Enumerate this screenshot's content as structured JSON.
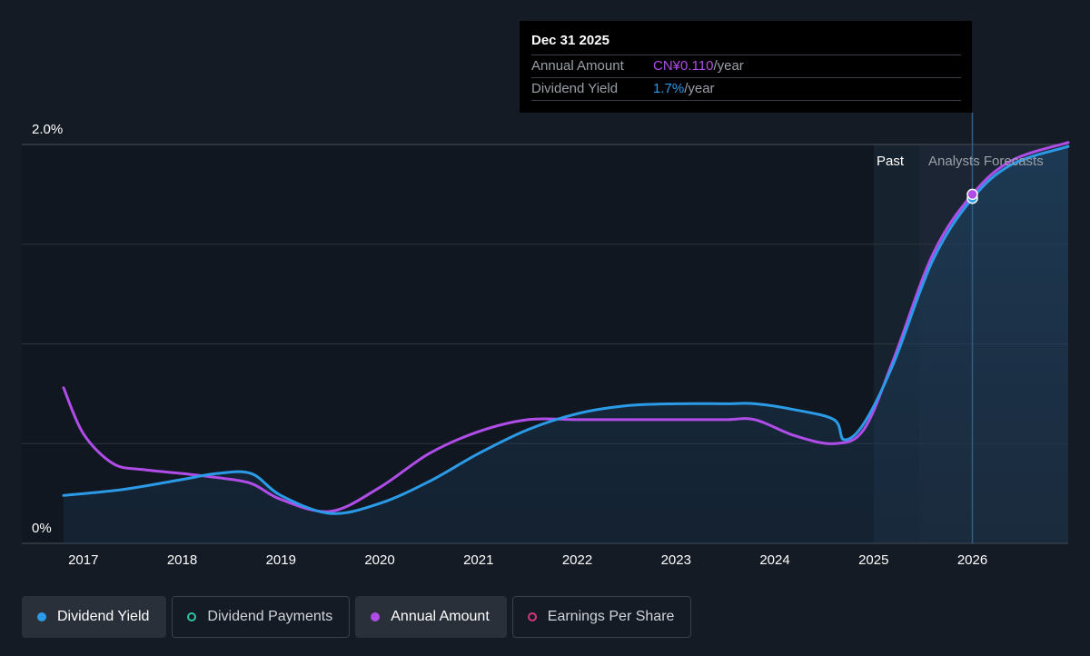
{
  "tooltip": {
    "date": "Dec 31 2025",
    "rows": [
      {
        "key": "Annual Amount",
        "value": "CN¥0.110",
        "unit": "/year"
      },
      {
        "key": "Dividend Yield",
        "value": "1.7%",
        "unit": "/year"
      }
    ]
  },
  "regions": {
    "past_label": "Past",
    "forecast_label": "Analysts Forecasts"
  },
  "colors": {
    "background": "#151b25",
    "dividend_yield": "#2b9be8",
    "annual_amount": "#b04de8",
    "dividend_payments": "#2ec4a6",
    "earnings_per_share": "#d2367e",
    "grid": "#2e3440"
  },
  "legend": [
    {
      "label": "Dividend Yield",
      "style": "filled",
      "color": "#2b9be8"
    },
    {
      "label": "Dividend Payments",
      "style": "outlined",
      "color": "#2ec4a6"
    },
    {
      "label": "Annual Amount",
      "style": "filled",
      "color": "#b04de8"
    },
    {
      "label": "Earnings Per Share",
      "style": "outlined",
      "color": "#d2367e"
    }
  ],
  "chart_data": {
    "type": "line",
    "y_tick_labels": [
      "2.0%",
      "0%"
    ],
    "ylim": [
      0,
      2.0
    ],
    "xlim": [
      2016.8,
      2026.97
    ],
    "x_tick_labels": [
      "2017",
      "2018",
      "2019",
      "2020",
      "2021",
      "2022",
      "2023",
      "2024",
      "2025",
      "2026"
    ],
    "x_ticks": [
      2017,
      2018,
      2019,
      2020,
      2021,
      2022,
      2023,
      2024,
      2025,
      2026
    ],
    "past_region": [
      2025.0,
      2025.46
    ],
    "forecast_region": [
      2025.46,
      2026.97
    ],
    "tooltip_date": 2026.0,
    "grid": "horizontal",
    "series": [
      {
        "name": "Dividend Yield",
        "x": [
          2016.8,
          2017.4,
          2018.0,
          2018.35,
          2018.7,
          2019.0,
          2019.5,
          2020.0,
          2020.5,
          2021.0,
          2021.5,
          2022.0,
          2022.5,
          2023.0,
          2023.5,
          2023.8,
          2024.2,
          2024.6,
          2024.7,
          2024.9,
          2025.2,
          2025.6,
          2026.0,
          2026.4,
          2026.97
        ],
        "values": [
          0.24,
          0.27,
          0.32,
          0.35,
          0.35,
          0.24,
          0.15,
          0.2,
          0.31,
          0.45,
          0.57,
          0.65,
          0.69,
          0.7,
          0.7,
          0.7,
          0.67,
          0.62,
          0.52,
          0.6,
          0.9,
          1.42,
          1.73,
          1.9,
          1.99
        ]
      },
      {
        "name": "Annual Amount",
        "x": [
          2016.8,
          2017.0,
          2017.3,
          2017.6,
          2018.0,
          2018.35,
          2018.7,
          2019.0,
          2019.5,
          2020.0,
          2020.5,
          2021.0,
          2021.5,
          2022.0,
          2022.5,
          2023.0,
          2023.5,
          2023.8,
          2024.2,
          2024.6,
          2024.9,
          2025.2,
          2025.6,
          2026.0,
          2026.4,
          2026.97
        ],
        "values": [
          0.78,
          0.55,
          0.4,
          0.37,
          0.35,
          0.33,
          0.3,
          0.22,
          0.16,
          0.28,
          0.45,
          0.56,
          0.62,
          0.62,
          0.62,
          0.62,
          0.62,
          0.62,
          0.54,
          0.5,
          0.57,
          0.92,
          1.45,
          1.75,
          1.92,
          2.01
        ]
      }
    ],
    "tooltip_points": [
      {
        "series": "Dividend Yield",
        "x": 2026.0,
        "y": 1.73
      },
      {
        "series": "Annual Amount",
        "x": 2026.0,
        "y": 1.75
      }
    ]
  }
}
